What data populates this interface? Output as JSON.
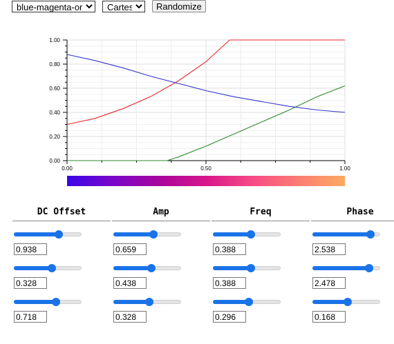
{
  "toolbar": {
    "scheme": "blue-magenta-orange",
    "coords": "Cartesian",
    "randomize_label": "Randomize"
  },
  "chart_data": {
    "type": "line",
    "xlim": [
      0,
      1
    ],
    "ylim": [
      0,
      1
    ],
    "x_ticks": [
      "0.00",
      "0.50",
      "1.00"
    ],
    "y_ticks": [
      "0.00",
      "0.20",
      "0.40",
      "0.60",
      "0.80",
      "1.00"
    ],
    "grid": true,
    "series": [
      {
        "color": "#e8252a",
        "x": [
          0,
          0.1,
          0.2,
          0.3,
          0.4,
          0.5,
          0.585,
          0.6,
          0.8,
          1.0
        ],
        "y": [
          0.3,
          0.35,
          0.43,
          0.53,
          0.66,
          0.82,
          1.0,
          1.0,
          1.0,
          1.0
        ]
      },
      {
        "color": "#2d8a2d",
        "x": [
          0,
          0.1,
          0.2,
          0.3,
          0.36,
          0.4,
          0.5,
          0.6,
          0.7,
          0.8,
          0.9,
          1.0
        ],
        "y": [
          0,
          0,
          0,
          0,
          0,
          0.03,
          0.12,
          0.22,
          0.32,
          0.42,
          0.53,
          0.62
        ]
      },
      {
        "color": "#3333cc",
        "x": [
          0,
          0.1,
          0.2,
          0.3,
          0.4,
          0.5,
          0.6,
          0.7,
          0.8,
          0.9,
          1.0
        ],
        "y": [
          0.88,
          0.83,
          0.77,
          0.7,
          0.64,
          0.58,
          0.53,
          0.49,
          0.45,
          0.42,
          0.4
        ]
      }
    ],
    "colorbar": [
      "#3b06e8",
      "#7a06c8",
      "#a8069c",
      "#d8168a",
      "#f74a86",
      "#fb7d72",
      "#fdaa60"
    ]
  },
  "panels": [
    {
      "title": "DC Offset",
      "sliders": [
        {
          "value": "0.938",
          "level": 0.66
        },
        {
          "value": "0.328",
          "level": 0.56
        },
        {
          "value": "0.718",
          "level": 0.62
        }
      ]
    },
    {
      "title": "Amp",
      "sliders": [
        {
          "value": "0.659",
          "level": 0.59
        },
        {
          "value": "0.438",
          "level": 0.56
        },
        {
          "value": "0.328",
          "level": 0.53
        }
      ]
    },
    {
      "title": "Freq",
      "sliders": [
        {
          "value": "0.388",
          "level": 0.56
        },
        {
          "value": "0.388",
          "level": 0.56
        },
        {
          "value": "0.296",
          "level": 0.53
        }
      ]
    },
    {
      "title": "Phase",
      "sliders": [
        {
          "value": "2.538",
          "level": 0.86
        },
        {
          "value": "2.478",
          "level": 0.84
        },
        {
          "value": "0.168",
          "level": 0.52
        }
      ]
    }
  ]
}
